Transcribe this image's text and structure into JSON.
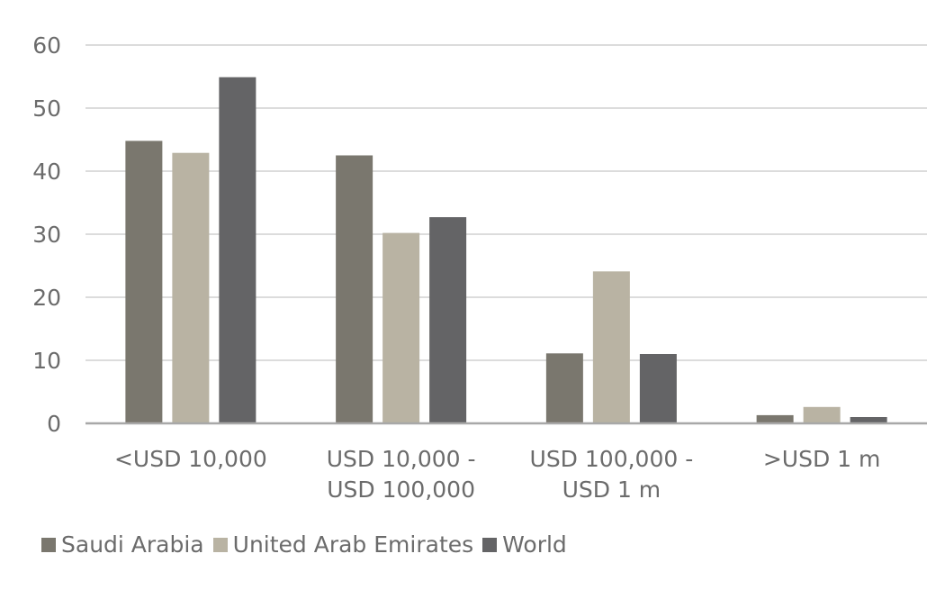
{
  "chart_data": {
    "type": "bar",
    "title": "",
    "xlabel": "",
    "ylabel": "",
    "ylim": [
      0,
      60
    ],
    "yticks": [
      0,
      10,
      20,
      30,
      40,
      50,
      60
    ],
    "grid": true,
    "legend_placement": "bottom-left",
    "categories": [
      [
        "<USD 10,000"
      ],
      [
        "USD 10,000 -",
        "USD 100,000"
      ],
      [
        "USD 100,000 -",
        "USD 1 m"
      ],
      [
        ">USD 1 m"
      ]
    ],
    "series": [
      {
        "name": "Saudi Arabia",
        "color": "#7a776e",
        "values": [
          44.8,
          42.5,
          11.1,
          1.3
        ]
      },
      {
        "name": "United Arab Emirates",
        "color": "#b9b3a3",
        "values": [
          42.9,
          30.2,
          24.1,
          2.6
        ]
      },
      {
        "name": "World",
        "color": "#646466",
        "values": [
          54.9,
          32.7,
          11.0,
          1.0
        ]
      }
    ]
  }
}
